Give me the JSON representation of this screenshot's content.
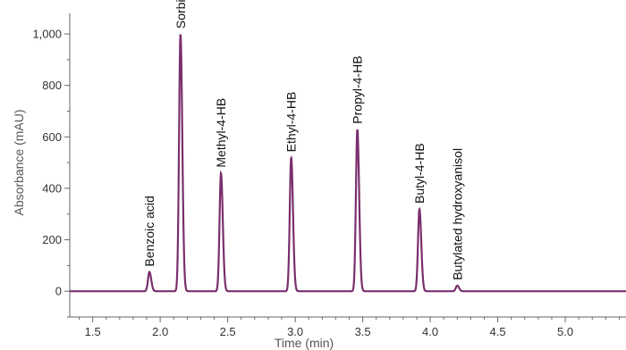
{
  "chart_data": {
    "type": "line",
    "title": "",
    "xlabel": "Time (min)",
    "ylabel": "Absorbance (mAU)",
    "xlim": [
      1.33,
      5.45
    ],
    "ylim": [
      -100,
      1080
    ],
    "x_ticks": [
      "1.5",
      "2.0",
      "2.5",
      "3.0",
      "3.5",
      "4.0",
      "4.5",
      "5.0"
    ],
    "y_ticks": [
      "0",
      "200",
      "400",
      "600",
      "800",
      "1,000"
    ],
    "grid": false,
    "colors": {
      "trace": "#7a2f6e",
      "axis": "#666666"
    },
    "peaks": [
      {
        "name": "Benzoic acid",
        "time": 1.92,
        "height": 75
      },
      {
        "name": "Sorbic acid",
        "time": 2.15,
        "height": 1000
      },
      {
        "name": "Methyl-4-HB",
        "time": 2.45,
        "height": 460
      },
      {
        "name": "Ethyl-4-HB",
        "time": 2.97,
        "height": 520
      },
      {
        "name": "Propyl-4-HB",
        "time": 3.46,
        "height": 630
      },
      {
        "name": "Butyl-4-HB",
        "time": 3.92,
        "height": 320
      },
      {
        "name": "Butylated hydroxyanisol",
        "time": 4.2,
        "height": 22
      }
    ]
  }
}
